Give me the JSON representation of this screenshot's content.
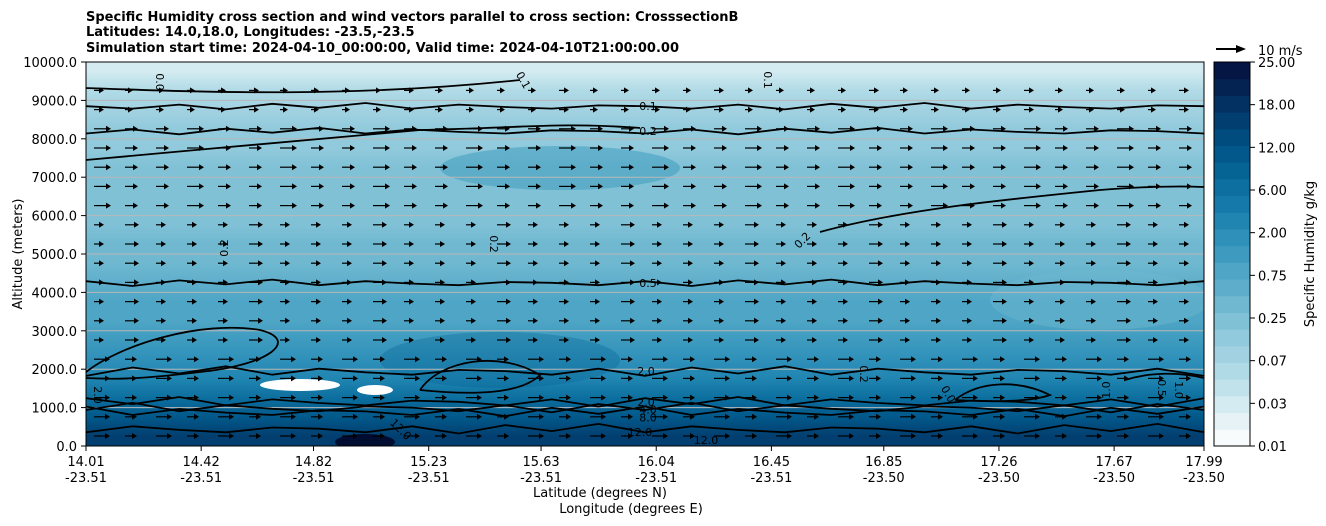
{
  "chart_data": {
    "type": "contourf",
    "title_lines": [
      "Specific Humidity cross section and wind vectors parallel to cross section: CrosssectionB",
      "Latitudes: 14.0,18.0, Longitudes: -23.5,-23.5",
      "Simulation start time: 2024-04-10_00:00:00, Valid time: 2024-04-10T21:00:00.00"
    ],
    "ylabel": "Altitude (meters)",
    "xlabel_lines": [
      "Latitude (degrees N)",
      "Longitude (degrees E)"
    ],
    "ylim": [
      0,
      10000
    ],
    "y_ticks": [
      "0.0",
      "1000.0",
      "2000.0",
      "3000.0",
      "4000.0",
      "5000.0",
      "6000.0",
      "7000.0",
      "8000.0",
      "9000.0",
      "10000.0"
    ],
    "x_ticks": [
      {
        "lat": "14.01",
        "lon": "-23.51"
      },
      {
        "lat": "14.42",
        "lon": "-23.51"
      },
      {
        "lat": "14.82",
        "lon": "-23.51"
      },
      {
        "lat": "15.23",
        "lon": "-23.51"
      },
      {
        "lat": "15.63",
        "lon": "-23.51"
      },
      {
        "lat": "16.04",
        "lon": "-23.51"
      },
      {
        "lat": "16.45",
        "lon": "-23.51"
      },
      {
        "lat": "16.85",
        "lon": "-23.50"
      },
      {
        "lat": "17.26",
        "lon": "-23.50"
      },
      {
        "lat": "17.67",
        "lon": "-23.50"
      },
      {
        "lat": "17.99",
        "lon": "-23.50"
      }
    ],
    "humidity_profile_gkg": [
      {
        "altitude": 250,
        "value": 16.0
      },
      {
        "altitude": 750,
        "value": 11.0
      },
      {
        "altitude": 1250,
        "value": 5.5
      },
      {
        "altitude": 1750,
        "value": 2.6
      },
      {
        "altitude": 2250,
        "value": 1.7
      },
      {
        "altitude": 2750,
        "value": 1.2
      },
      {
        "altitude": 3250,
        "value": 0.9
      },
      {
        "altitude": 3750,
        "value": 0.7
      },
      {
        "altitude": 4250,
        "value": 0.5
      },
      {
        "altitude": 4750,
        "value": 0.4
      },
      {
        "altitude": 5250,
        "value": 0.32
      },
      {
        "altitude": 5750,
        "value": 0.28
      },
      {
        "altitude": 6250,
        "value": 0.22
      },
      {
        "altitude": 6750,
        "value": 0.2
      },
      {
        "altitude": 7250,
        "value": 0.18
      },
      {
        "altitude": 7750,
        "value": 0.15
      },
      {
        "altitude": 8250,
        "value": 0.12
      },
      {
        "altitude": 8750,
        "value": 0.09
      },
      {
        "altitude": 9250,
        "value": 0.05
      },
      {
        "altitude": 9750,
        "value": 0.03
      }
    ],
    "contour_lines": [
      {
        "label": "0.1",
        "altitude": 8850
      },
      {
        "label": "0.2",
        "altitude": 8200
      },
      {
        "label": "0.5",
        "altitude": 4250
      },
      {
        "label": "2.0",
        "altitude": 1950
      },
      {
        "label": "2.0",
        "altitude": 1150
      },
      {
        "label": "4.0",
        "altitude": 1000
      },
      {
        "label": "8.0",
        "altitude": 900
      },
      {
        "label": "12.0",
        "altitude": 450
      }
    ],
    "contour_labels_extra": [
      "0.0",
      "0.1",
      "0.1",
      "0.2",
      "0.2",
      "0.2",
      "0.2",
      "2.0",
      "1.0",
      "1.0",
      "0.5",
      "12.0",
      "12.0",
      "0.0"
    ],
    "colorbar": {
      "label": "Specific Humidity g/kg",
      "ticks": [
        "0.01",
        "0.03",
        "0.07",
        "0.25",
        "0.75",
        "2.00",
        "6.00",
        "12.00",
        "18.00",
        "25.00"
      ],
      "colors": [
        "#f7fbfc",
        "#e6f2f6",
        "#d3ebf1",
        "#c1e2eb",
        "#b0dae6",
        "#a2d2e1",
        "#91cadc",
        "#80c1d6",
        "#6fb8d0",
        "#5eaecb",
        "#4ea5c5",
        "#3e9bbf",
        "#2f90b9",
        "#2185b2",
        "#157aa9",
        "#0c6f9f",
        "#066495",
        "#02588a",
        "#014c7e",
        "#023f70",
        "#033262",
        "#042353",
        "#051544"
      ]
    },
    "wind_vectors": {
      "reference_label": "10 m/s"
    }
  }
}
